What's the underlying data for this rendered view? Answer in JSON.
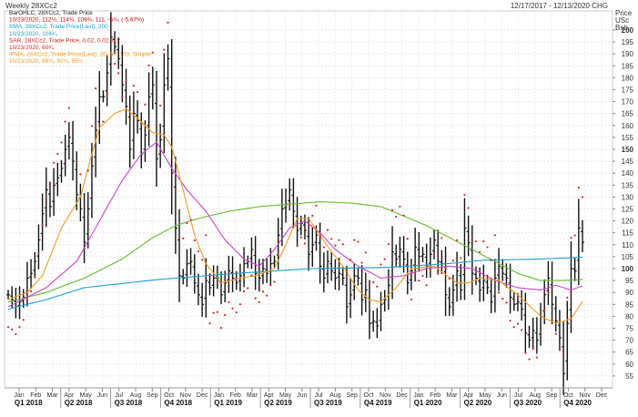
{
  "chart_data": {
    "type": "ohlc",
    "title": "Weekly 28XCc2",
    "date_range": "12/17/2017 - 12/13/2020 CHG",
    "axis_title": [
      "Price",
      "USc",
      "Bsh"
    ],
    "ylim": [
      50,
      208
    ],
    "yticks": [
      55,
      60,
      65,
      70,
      75,
      80,
      85,
      90,
      95,
      100,
      105,
      110,
      115,
      120,
      125,
      130,
      135,
      140,
      145,
      150,
      155,
      160,
      165,
      170,
      175,
      180,
      185,
      190,
      195,
      200
    ],
    "ybold": [
      100,
      150,
      200
    ],
    "months": [
      "Jan",
      "Feb",
      "Mar",
      "Apr",
      "May",
      "Jun",
      "Jul",
      "Aug",
      "Sep",
      "Oct",
      "Nov",
      "Dec",
      "Jan",
      "Feb",
      "Mar",
      "Apr",
      "May",
      "Jun",
      "Jul",
      "Aug",
      "Sep",
      "Oct",
      "Nov",
      "Dec",
      "Jan",
      "Feb",
      "Mar",
      "Apr",
      "May",
      "Jun",
      "Jul",
      "Aug",
      "Sep",
      "Oct",
      "Nov",
      "Dec"
    ],
    "quarters": [
      "Q1 2018",
      "Q2 2018",
      "Q3 2018",
      "Q4 2018",
      "Q1 2019",
      "Q2 2019",
      "Q3 2019",
      "Q4 2019",
      "Q1 2020",
      "Q2 2020",
      "Q3 2020",
      "Q4 2020"
    ],
    "legend": [
      {
        "text": "BarOHLC, 28XCc2, Trade Price",
        "color": "#222222"
      },
      {
        "text": "10/23/2020, 112½, 114¾, 109¾, 111, -6¾, (-5.67%)",
        "color": "#cc0000"
      },
      {
        "text": "SMA, 28XCc2, Trade Price(Last), 200",
        "color": "#1e9fd0"
      },
      {
        "text": "10/23/2020, 104³⁄₄",
        "color": "#1e9fd0"
      },
      {
        "text": "SAR, 28XCc2, Trade Price, 0.02, 0.02, 0.2",
        "color": "#dd2222"
      },
      {
        "text": "10/23/2020, 60³⁄₄",
        "color": "#dd2222"
      },
      {
        "text": "IPMA, 28XCc2, Trade Price(Last), 20, 50, 100, Simple",
        "color": "#f39c1e"
      },
      {
        "text": "10/23/2020, 86¼, 92¾, 95½",
        "color": "#f39c1e"
      }
    ],
    "series_colors": {
      "bars": "#111111",
      "sma200": "#1e9fd0",
      "sar": "#dd2222",
      "ma20": "#f39c1e",
      "ma50": "#cc44cc",
      "ma100": "#66bb33"
    },
    "closes": [
      89,
      87,
      84,
      86,
      88,
      96,
      98,
      103,
      112,
      123,
      133,
      126,
      135,
      138,
      142,
      150,
      155,
      145,
      131,
      125,
      111,
      125,
      143,
      158,
      172,
      172,
      182,
      197,
      193,
      188,
      177,
      168,
      150,
      165,
      162,
      148,
      156,
      172,
      177,
      146,
      154,
      177,
      188,
      140,
      117,
      97,
      96,
      102,
      103,
      94,
      89,
      85,
      95,
      92,
      96,
      96,
      89,
      94,
      99,
      96,
      94,
      97,
      102,
      103,
      108,
      98,
      96,
      100,
      98,
      102,
      103,
      114,
      125,
      127,
      133,
      124,
      116,
      119,
      116,
      106,
      110,
      114,
      101,
      96,
      103,
      99,
      96,
      98,
      96,
      84,
      89,
      97,
      96,
      87,
      91,
      77,
      78,
      76,
      85,
      87,
      93,
      107,
      104,
      108,
      104,
      94,
      99,
      109,
      105,
      106,
      101,
      106,
      112,
      103,
      102,
      89,
      84,
      91,
      99,
      91,
      117,
      111,
      98,
      96,
      91,
      95,
      92,
      86,
      96,
      101,
      98,
      96,
      88,
      85,
      86,
      83,
      73,
      70,
      74,
      70,
      80,
      89,
      96,
      85,
      78,
      71,
      56,
      77,
      100,
      99,
      117,
      111
    ],
    "sma200_knots": [
      [
        0,
        83
      ],
      [
        10,
        87
      ],
      [
        20,
        92
      ],
      [
        40,
        95.5
      ],
      [
        60,
        98
      ],
      [
        80,
        100
      ],
      [
        100,
        100.5
      ],
      [
        115,
        102
      ],
      [
        125,
        103.5
      ],
      [
        140,
        104
      ],
      [
        151,
        104.75
      ]
    ],
    "ma20_knots": [
      [
        0,
        87
      ],
      [
        5,
        90
      ],
      [
        9,
        97
      ],
      [
        14,
        117
      ],
      [
        19,
        130
      ],
      [
        22,
        148
      ],
      [
        24,
        159
      ],
      [
        26,
        162
      ],
      [
        28,
        165
      ],
      [
        31,
        167
      ],
      [
        34,
        163
      ],
      [
        38,
        157
      ],
      [
        41,
        156
      ],
      [
        43,
        151
      ],
      [
        46,
        133
      ],
      [
        49,
        114
      ],
      [
        52,
        102
      ],
      [
        56,
        94
      ],
      [
        61,
        96
      ],
      [
        65,
        97
      ],
      [
        70,
        100
      ],
      [
        73,
        110
      ],
      [
        76,
        121
      ],
      [
        79,
        121
      ],
      [
        82,
        114
      ],
      [
        85,
        107
      ],
      [
        88,
        101
      ],
      [
        92,
        91
      ],
      [
        95,
        87
      ],
      [
        98,
        86
      ],
      [
        102,
        92
      ],
      [
        106,
        100
      ],
      [
        112,
        101
      ],
      [
        118,
        94
      ],
      [
        121,
        94
      ],
      [
        124,
        96
      ],
      [
        129,
        95
      ],
      [
        134,
        89
      ],
      [
        140,
        80
      ],
      [
        144,
        77
      ],
      [
        148,
        79
      ],
      [
        151,
        86.25
      ]
    ],
    "ma50_knots": [
      [
        0,
        84
      ],
      [
        10,
        92
      ],
      [
        18,
        103
      ],
      [
        24,
        120
      ],
      [
        30,
        137
      ],
      [
        35,
        148
      ],
      [
        39,
        153
      ],
      [
        43,
        142
      ],
      [
        47,
        133
      ],
      [
        52,
        124
      ],
      [
        57,
        112
      ],
      [
        62,
        104
      ],
      [
        66,
        101
      ],
      [
        70,
        108
      ],
      [
        74,
        117
      ],
      [
        78,
        120
      ],
      [
        82,
        115
      ],
      [
        86,
        108
      ],
      [
        92,
        101
      ],
      [
        98,
        96
      ],
      [
        104,
        97
      ],
      [
        110,
        100
      ],
      [
        116,
        101
      ],
      [
        122,
        100
      ],
      [
        128,
        95
      ],
      [
        134,
        92
      ],
      [
        140,
        91
      ],
      [
        144,
        93
      ],
      [
        148,
        91
      ],
      [
        151,
        92.75
      ]
    ],
    "ma100_knots": [
      [
        0,
        86
      ],
      [
        10,
        90
      ],
      [
        20,
        96
      ],
      [
        30,
        104
      ],
      [
        38,
        113
      ],
      [
        44,
        118
      ],
      [
        50,
        121
      ],
      [
        58,
        124
      ],
      [
        66,
        126
      ],
      [
        74,
        127
      ],
      [
        82,
        128
      ],
      [
        90,
        127.5
      ],
      [
        98,
        126
      ],
      [
        104,
        122
      ],
      [
        110,
        118
      ],
      [
        116,
        113
      ],
      [
        122,
        108
      ],
      [
        128,
        103
      ],
      [
        134,
        98
      ],
      [
        140,
        95
      ],
      [
        146,
        95
      ],
      [
        151,
        95.5
      ]
    ],
    "sar_segments": [
      [
        0,
        10,
        0,
        1,
        3.5,
        "below"
      ],
      [
        11,
        23,
        0.74,
        0,
        -5.5,
        "above"
      ],
      [
        24,
        30,
        0.35,
        1,
        5,
        "below"
      ],
      [
        31,
        52,
        0.68,
        0,
        -7,
        "above"
      ],
      [
        53,
        78,
        0.05,
        1,
        5.5,
        "below"
      ],
      [
        79,
        105,
        0.55,
        0,
        -6.5,
        "above"
      ],
      [
        106,
        113,
        0.3,
        1,
        5,
        "below"
      ],
      [
        114,
        128,
        0.6,
        0,
        -6,
        "above"
      ],
      [
        129,
        145,
        0.4,
        1,
        5,
        "below"
      ],
      [
        146,
        151,
        0.85,
        0,
        -7,
        "above"
      ]
    ]
  }
}
